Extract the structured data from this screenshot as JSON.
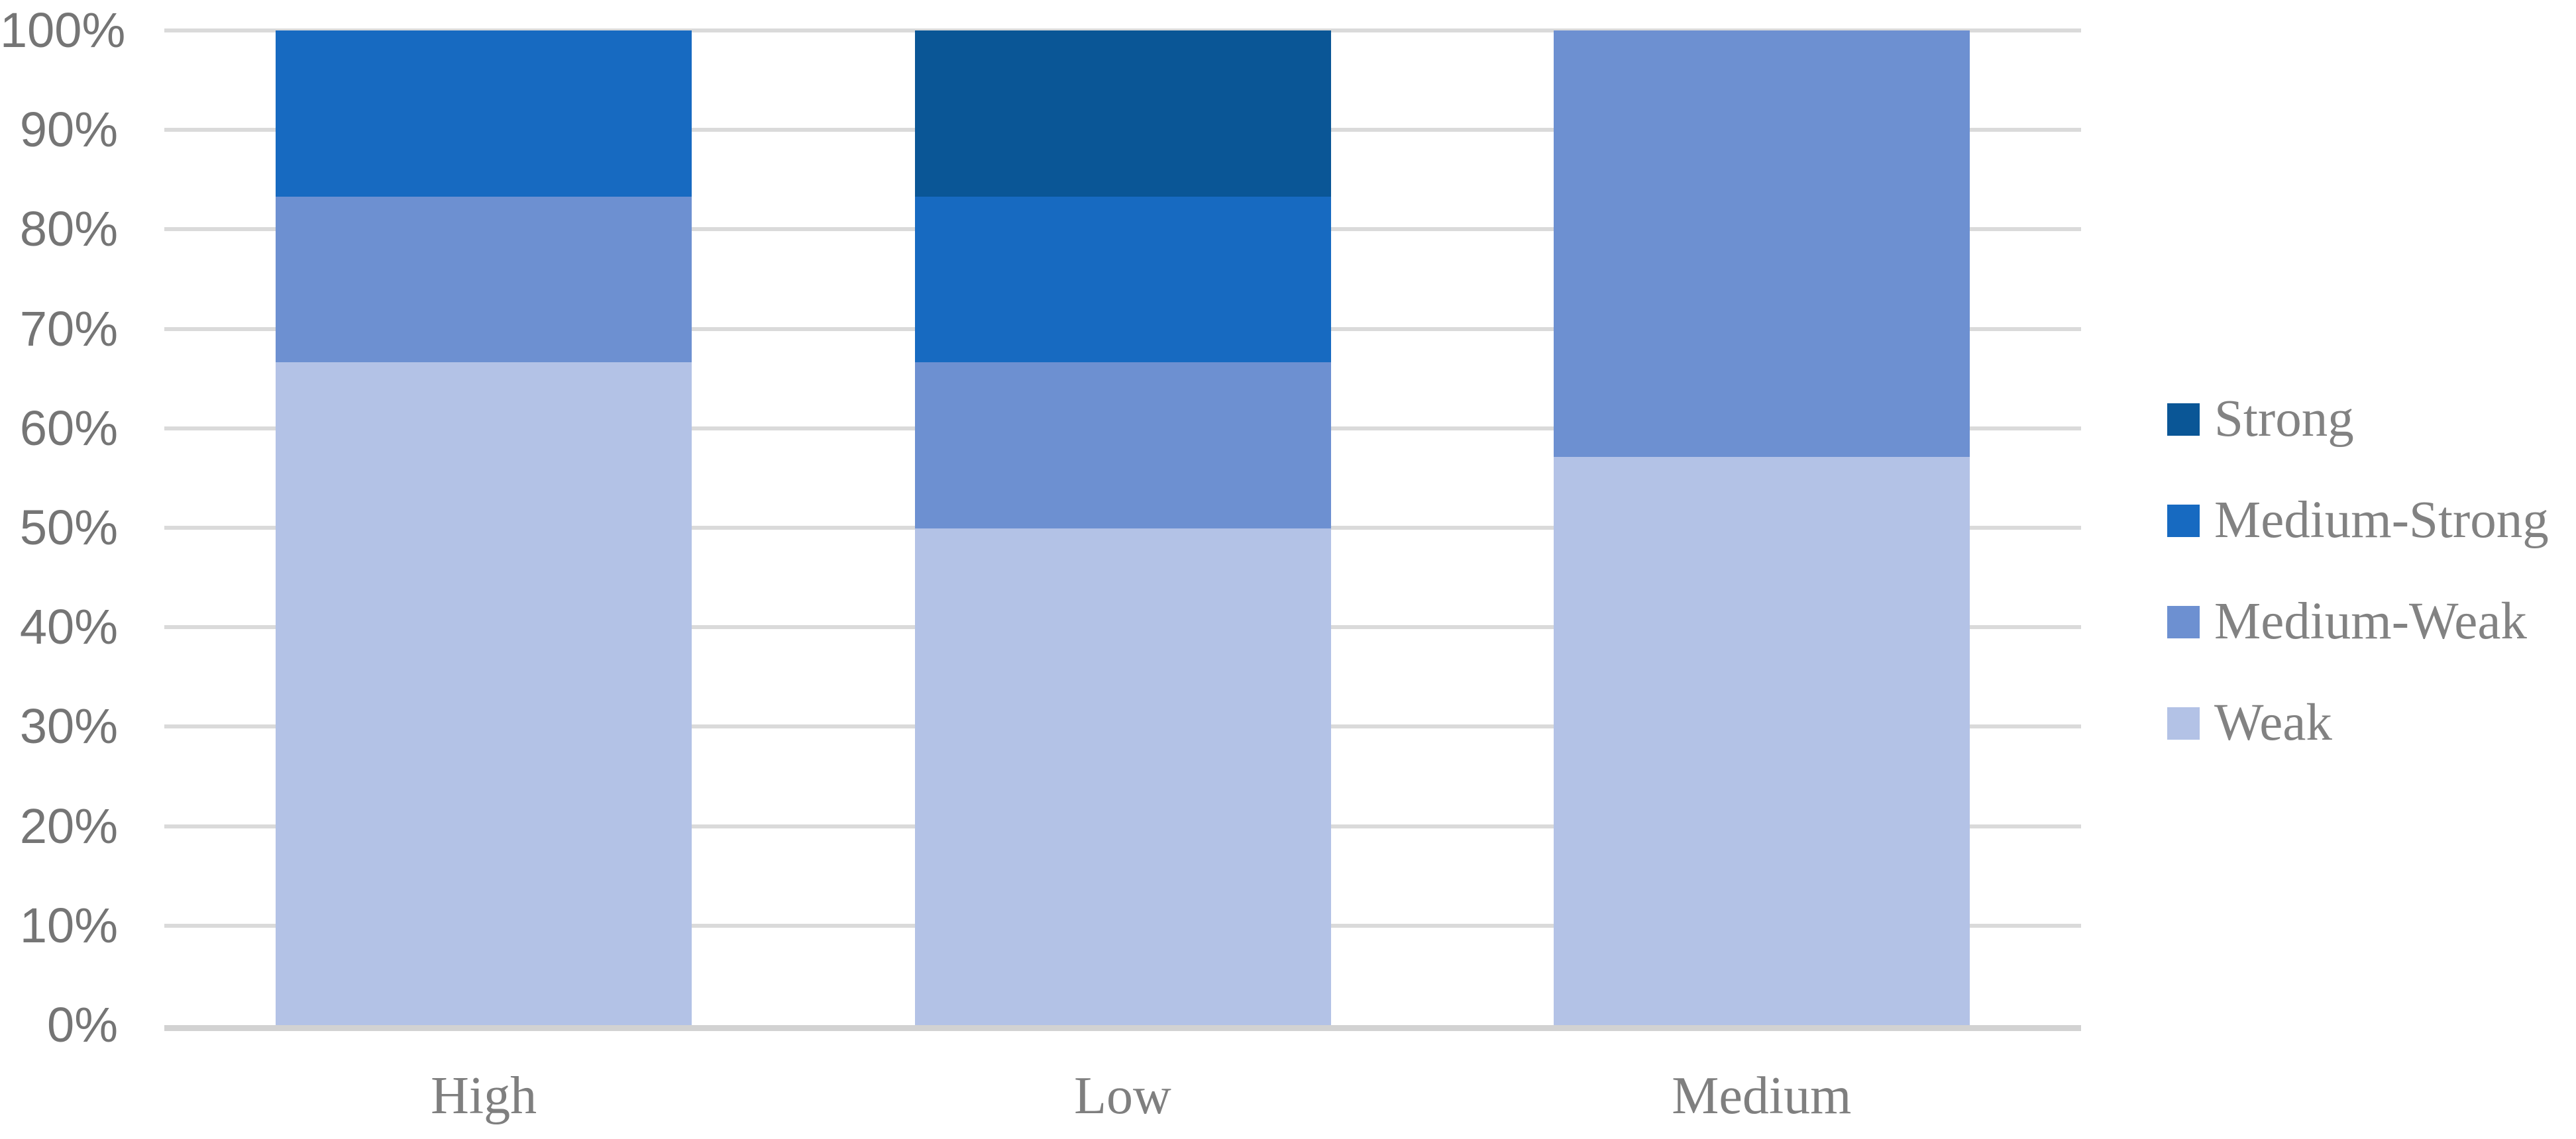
{
  "chart_data": {
    "type": "bar",
    "subtype": "stacked-100",
    "title": "",
    "xlabel": "",
    "ylabel": "",
    "categories": [
      "High",
      "Low",
      "Medium"
    ],
    "series": [
      {
        "name": "Weak",
        "color": "#b3c2e6",
        "values": [
          66.7,
          50.0,
          57.1
        ]
      },
      {
        "name": "Medium-Weak",
        "color": "#6d90d1",
        "values": [
          16.7,
          16.7,
          42.9
        ]
      },
      {
        "name": "Medium-Strong",
        "color": "#176ac1",
        "values": [
          16.7,
          16.7,
          0
        ]
      },
      {
        "name": "Strong",
        "color": "#0a5696",
        "values": [
          0.0,
          16.7,
          0
        ]
      }
    ],
    "y_axis": {
      "min": 0,
      "max": 100,
      "step": 10,
      "tick_labels": [
        "0%",
        "10%",
        "20%",
        "30%",
        "40%",
        "50%",
        "60%",
        "70%",
        "80%",
        "90%",
        "100%"
      ]
    },
    "legend": {
      "position": "right",
      "entries": [
        "Strong",
        "Medium-Strong",
        "Medium-Weak",
        "Weak"
      ]
    },
    "grid": true,
    "gridline_color": "#dadada",
    "axis_line_color": "#d2d2d2",
    "tick_text_color": "#757575",
    "label_text_color": "#7f7f7f",
    "background_color": "#ffffff"
  }
}
